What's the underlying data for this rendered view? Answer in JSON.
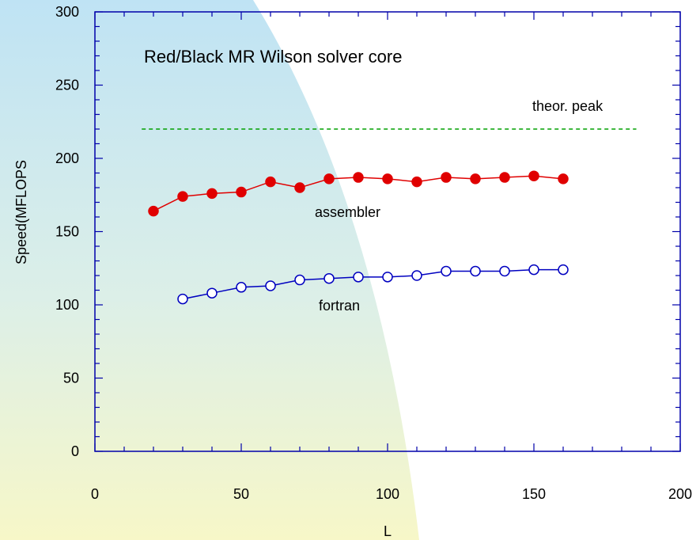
{
  "chart_data": {
    "type": "line",
    "title": "Red/Black MR Wilson solver core",
    "xlabel": "L",
    "ylabel": "Speed(MFLOPS",
    "xlim": [
      0,
      200
    ],
    "ylim": [
      0,
      300
    ],
    "xticks": [
      0,
      50,
      100,
      150,
      200
    ],
    "yticks": [
      0,
      50,
      100,
      150,
      200,
      250,
      300
    ],
    "grid": false,
    "series": [
      {
        "name": "assembler",
        "color": "#e00000",
        "marker": "filled-circle",
        "x": [
          20,
          30,
          40,
          50,
          60,
          70,
          80,
          90,
          100,
          110,
          120,
          130,
          140,
          150,
          160
        ],
        "y": [
          164,
          174,
          176,
          177,
          184,
          180,
          186,
          187,
          186,
          184,
          187,
          186,
          187,
          188,
          186
        ]
      },
      {
        "name": "fortran",
        "color": "#0000c0",
        "marker": "open-circle",
        "x": [
          30,
          40,
          50,
          60,
          70,
          80,
          90,
          100,
          110,
          120,
          130,
          140,
          150,
          160
        ],
        "y": [
          104,
          108,
          112,
          113,
          117,
          118,
          119,
          119,
          120,
          123,
          123,
          123,
          124,
          124
        ]
      }
    ],
    "reference_line": {
      "label": "theor. peak",
      "y": 220,
      "x_range": [
        16,
        185
      ],
      "color": "#00a000",
      "style": "dashed"
    }
  }
}
